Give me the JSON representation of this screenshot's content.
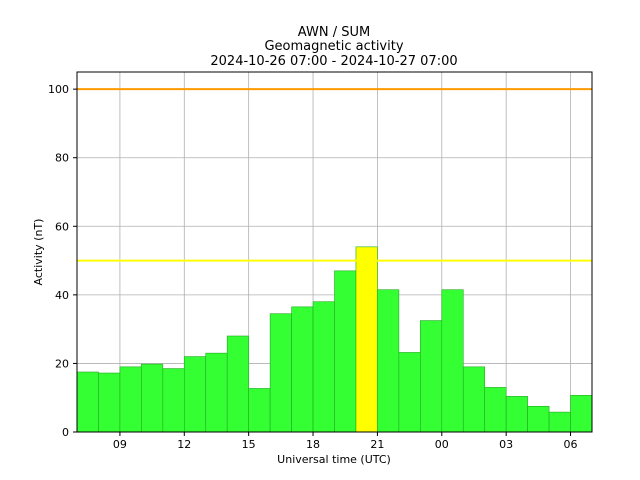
{
  "chart_data": {
    "type": "bar",
    "title_lines": [
      "AWN / SUM",
      "Geomagnetic activity",
      "2024-10-26 07:00 - 2024-10-27 07:00"
    ],
    "xlabel": "Universal time (UTC)",
    "ylabel": "Activity (nT)",
    "xlim_hours": [
      0,
      24
    ],
    "ylim": [
      0,
      105
    ],
    "y_ticks": [
      0,
      20,
      40,
      60,
      80,
      100
    ],
    "x_ticks": [
      {
        "hour": 2,
        "label": "09"
      },
      {
        "hour": 5,
        "label": "12"
      },
      {
        "hour": 8,
        "label": "15"
      },
      {
        "hour": 11,
        "label": "18"
      },
      {
        "hour": 14,
        "label": "21"
      },
      {
        "hour": 17,
        "label": "00"
      },
      {
        "hour": 20,
        "label": "03"
      },
      {
        "hour": 23,
        "label": "06"
      }
    ],
    "grid": true,
    "thresholds": [
      {
        "value": 100,
        "color": "#ff9900"
      },
      {
        "value": 50,
        "color": "#ffff00"
      }
    ],
    "colors": {
      "normal": "#33ff33",
      "elevated": "#ffff00",
      "edge": "#22aa22"
    },
    "bars": [
      {
        "value": 17.5,
        "level": "normal"
      },
      {
        "value": 17.2,
        "level": "normal"
      },
      {
        "value": 19.0,
        "level": "normal"
      },
      {
        "value": 19.8,
        "level": "normal"
      },
      {
        "value": 18.5,
        "level": "normal"
      },
      {
        "value": 22.0,
        "level": "normal"
      },
      {
        "value": 23.0,
        "level": "normal"
      },
      {
        "value": 28.0,
        "level": "normal"
      },
      {
        "value": 12.7,
        "level": "normal"
      },
      {
        "value": 34.5,
        "level": "normal"
      },
      {
        "value": 36.5,
        "level": "normal"
      },
      {
        "value": 38.0,
        "level": "normal"
      },
      {
        "value": 47.0,
        "level": "normal"
      },
      {
        "value": 54.0,
        "level": "elevated"
      },
      {
        "value": 41.5,
        "level": "normal"
      },
      {
        "value": 23.2,
        "level": "normal"
      },
      {
        "value": 32.5,
        "level": "normal"
      },
      {
        "value": 41.5,
        "level": "normal"
      },
      {
        "value": 19.0,
        "level": "normal"
      },
      {
        "value": 13.0,
        "level": "normal"
      },
      {
        "value": 10.4,
        "level": "normal"
      },
      {
        "value": 7.5,
        "level": "normal"
      },
      {
        "value": 5.8,
        "level": "normal"
      },
      {
        "value": 10.7,
        "level": "normal"
      }
    ]
  }
}
